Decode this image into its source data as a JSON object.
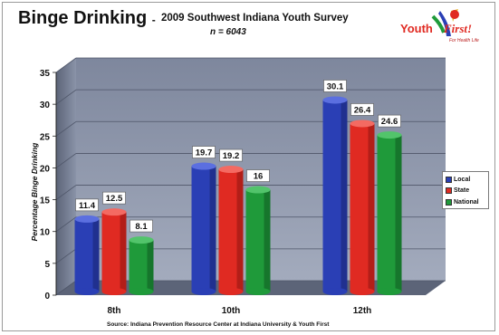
{
  "header": {
    "title": "Binge Drinking",
    "separator": "-",
    "subtitle": "2009 Southwest Indiana Youth Survey",
    "n_note": "n = 6043"
  },
  "logo": {
    "text_main": "Youth",
    "text_accent": "First!",
    "tagline": "For Health Life"
  },
  "colors": {
    "local": "#2a3fb5",
    "state": "#e02a22",
    "national": "#1f9a3a",
    "plot_bg": "#8a93a8"
  },
  "chart_data": {
    "type": "bar",
    "title": "Binge Drinking - 2009 Southwest Indiana Youth Survey",
    "subtitle": "n = 6043",
    "xlabel": "",
    "ylabel": "Percentage Binge Drinking",
    "categories": [
      "8th",
      "10th",
      "12th"
    ],
    "series": [
      {
        "name": "Local",
        "values": [
          11.4,
          19.7,
          30.1
        ]
      },
      {
        "name": "State",
        "values": [
          12.5,
          19.2,
          26.4
        ]
      },
      {
        "name": "National",
        "values": [
          8.1,
          16,
          24.6
        ]
      }
    ],
    "value_labels": [
      [
        "11.4",
        "19.7",
        "30.1"
      ],
      [
        "12.5",
        "19.2",
        "26.4"
      ],
      [
        "8.1",
        "16",
        "24.6"
      ]
    ],
    "ylim": [
      0,
      35
    ],
    "yticks": [
      0,
      5,
      10,
      15,
      20,
      25,
      30,
      35
    ],
    "ytick_labels": [
      "0",
      "5",
      "10",
      "15",
      "20",
      "25",
      "30",
      "35"
    ],
    "grid": true,
    "legend_position": "right"
  },
  "legend": [
    "Local",
    "State",
    "National"
  ],
  "source": "Source:  Indiana Prevention Resource Center at Indiana University & Youth First"
}
